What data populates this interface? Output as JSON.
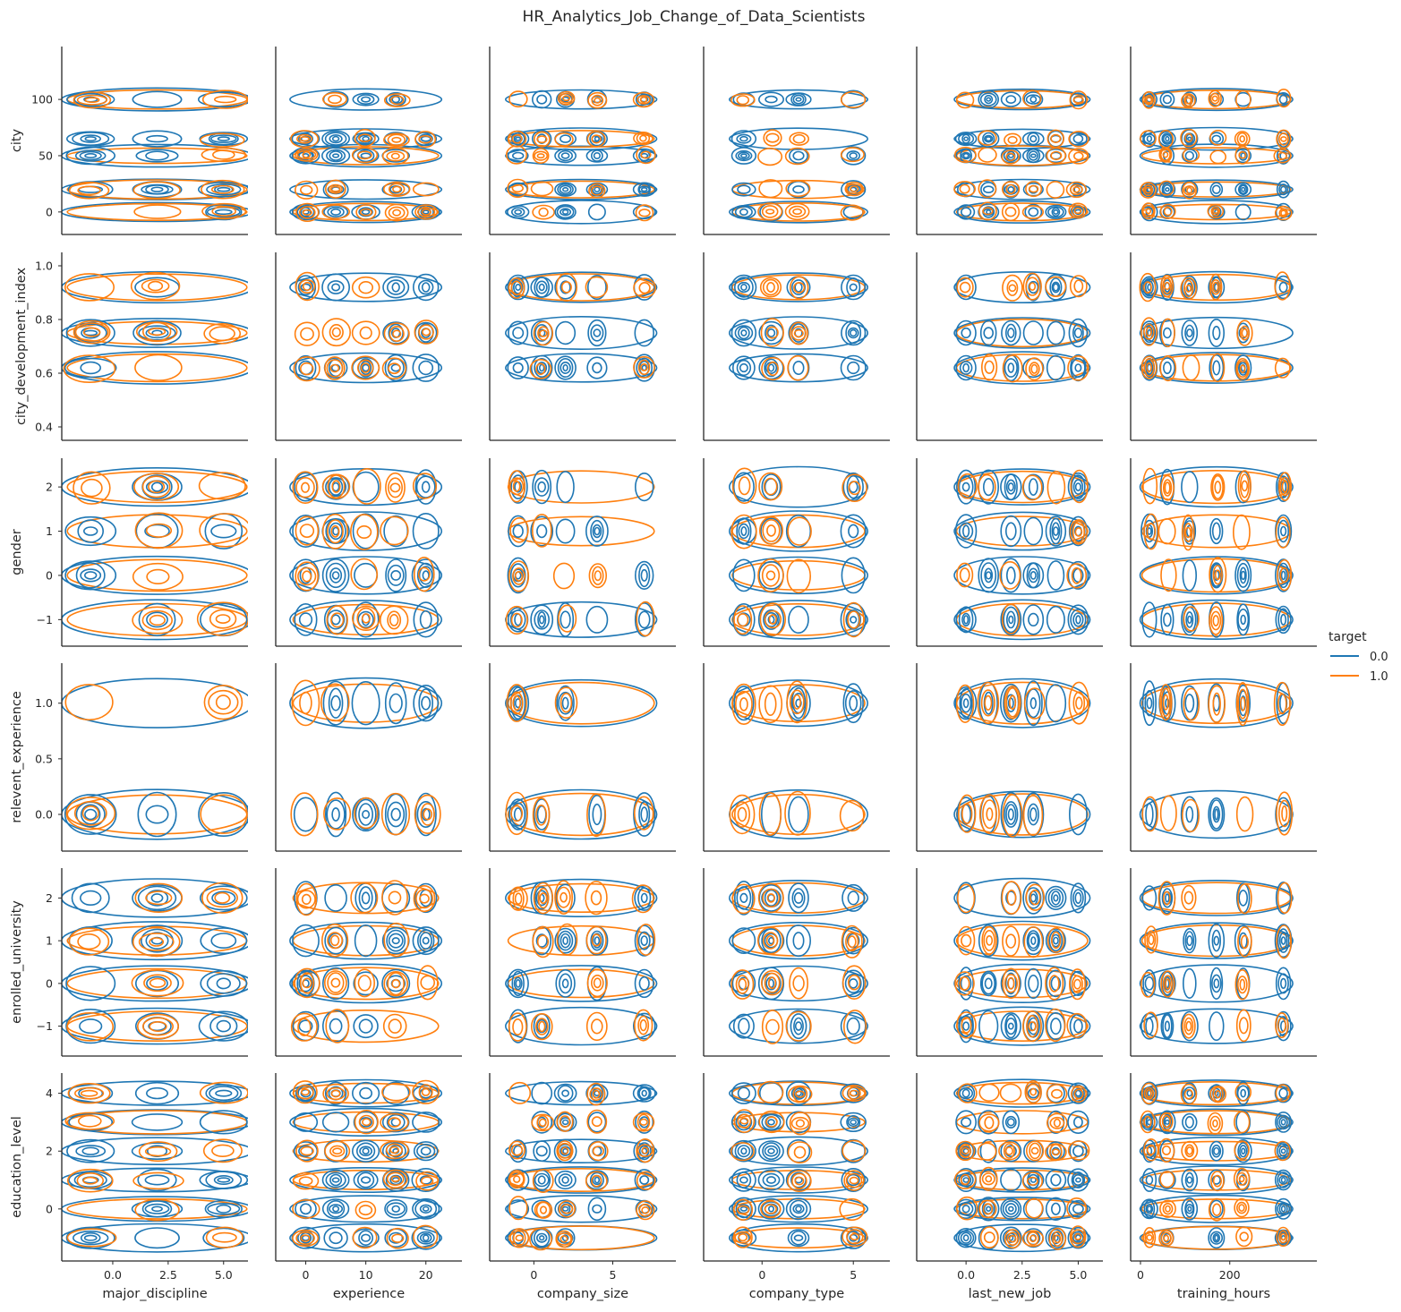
{
  "title": "HR_Analytics_Job_Change_of_Data_Scientists",
  "legend": {
    "title": "target",
    "placement": "right-center",
    "entries": [
      {
        "label": "0.0",
        "color": "#1f77b4"
      },
      {
        "label": "1.0",
        "color": "#ff7f0e"
      }
    ]
  },
  "chart_data": {
    "type": "kde-contour-pairgrid",
    "hue": "target",
    "x_vars": [
      {
        "name": "major_discipline",
        "lim": [
          -2.3,
          6.1
        ],
        "ticks": [
          0,
          2.5,
          5
        ],
        "ticklabels": [
          "0.0",
          "2.5",
          "5.0"
        ]
      },
      {
        "name": "experience",
        "lim": [
          -5,
          26
        ],
        "ticks": [
          0,
          10,
          20
        ],
        "ticklabels": [
          "0",
          "10",
          "20"
        ]
      },
      {
        "name": "company_size",
        "lim": [
          -2.8,
          9.0
        ],
        "ticks": [
          0,
          5
        ],
        "ticklabels": [
          "0",
          "5"
        ]
      },
      {
        "name": "company_type",
        "lim": [
          -3.2,
          7.0
        ],
        "ticks": [
          0,
          5
        ],
        "ticklabels": [
          "0",
          "5"
        ]
      },
      {
        "name": "last_new_job",
        "lim": [
          -2.2,
          6.1
        ],
        "ticks": [
          0,
          2.5,
          5
        ],
        "ticklabels": [
          "0.0",
          "2.5",
          "5.0"
        ]
      },
      {
        "name": "training_hours",
        "lim": [
          -22,
          395
        ],
        "ticks": [
          0,
          200
        ],
        "ticklabels": [
          "0",
          "200"
        ]
      }
    ],
    "y_vars": [
      {
        "name": "city",
        "lim": [
          -20,
          147
        ],
        "ticks": [
          0,
          50,
          100
        ],
        "ticklabels": [
          "0",
          "50",
          "100"
        ]
      },
      {
        "name": "city_development_index",
        "lim": [
          0.35,
          1.05
        ],
        "ticks": [
          0.4,
          0.6,
          0.8,
          1.0
        ],
        "ticklabels": [
          "0.4",
          "0.6",
          "0.8",
          "1.0"
        ]
      },
      {
        "name": "gender",
        "lim": [
          -1.6,
          2.65
        ],
        "ticks": [
          -1,
          0,
          1,
          2
        ],
        "ticklabels": [
          "−1",
          "0",
          "1",
          "2"
        ]
      },
      {
        "name": "relevent_experience",
        "lim": [
          -0.33,
          1.36
        ],
        "ticks": [
          0,
          0.5,
          1.0
        ],
        "ticklabels": [
          "0.0",
          "0.5",
          "1.0"
        ]
      },
      {
        "name": "enrolled_university",
        "lim": [
          -1.7,
          2.7
        ],
        "ticks": [
          -1,
          0,
          1,
          2
        ],
        "ticklabels": [
          "−1",
          "0",
          "1",
          "2"
        ]
      },
      {
        "name": "education_level",
        "lim": [
          -1.8,
          4.7
        ],
        "ticks": [
          0,
          2,
          4
        ],
        "ticklabels": [
          "0",
          "2",
          "4"
        ]
      }
    ],
    "x_levels": [
      [
        -1,
        2,
        5
      ],
      [
        0,
        5,
        10,
        15,
        20
      ],
      [
        -1,
        0.5,
        2,
        4,
        7
      ],
      [
        -1,
        0.5,
        2,
        5
      ],
      [
        0,
        1,
        2,
        3,
        4,
        5
      ],
      [
        20,
        60,
        110,
        170,
        230,
        320
      ]
    ],
    "y_levels": [
      [
        0,
        20,
        50,
        65,
        100
      ],
      [
        0.62,
        0.75,
        0.92
      ],
      [
        -1,
        0,
        1,
        2
      ],
      [
        0,
        1
      ],
      [
        -1,
        0,
        1,
        2
      ],
      [
        -1,
        0,
        1,
        2,
        3,
        4
      ]
    ]
  }
}
